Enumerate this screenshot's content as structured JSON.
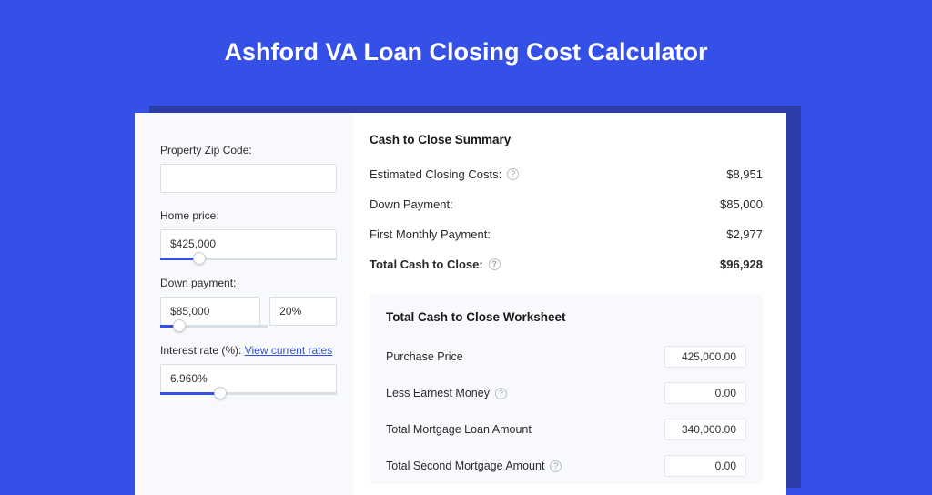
{
  "colors": {
    "page_bg": "#3550e6",
    "shadow_bg": "#2c3ca8",
    "card_bg": "#ffffff",
    "panel_bg": "#f8f9fc",
    "accent": "#3550e6",
    "border": "#d9dde4",
    "text": "#2b2b2b",
    "title_text": "#ffffff"
  },
  "title": "Ashford VA Loan Closing Cost Calculator",
  "inputs": {
    "zip": {
      "label": "Property Zip Code:",
      "value": ""
    },
    "home_price": {
      "label": "Home price:",
      "value": "$425,000",
      "slider_pct": 22
    },
    "down_payment": {
      "label": "Down payment:",
      "value": "$85,000",
      "pct_value": "20%",
      "slider_pct": 18
    },
    "interest_rate": {
      "label_prefix": "Interest rate (%): ",
      "link_text": "View current rates",
      "value": "6.960%",
      "slider_pct": 34
    }
  },
  "summary": {
    "title": "Cash to Close Summary",
    "rows": [
      {
        "label": "Estimated Closing Costs:",
        "help": true,
        "value": "$8,951",
        "bold": false
      },
      {
        "label": "Down Payment:",
        "help": false,
        "value": "$85,000",
        "bold": false
      },
      {
        "label": "First Monthly Payment:",
        "help": false,
        "value": "$2,977",
        "bold": false
      },
      {
        "label": "Total Cash to Close:",
        "help": true,
        "value": "$96,928",
        "bold": true
      }
    ]
  },
  "worksheet": {
    "title": "Total Cash to Close Worksheet",
    "rows": [
      {
        "label": "Purchase Price",
        "help": false,
        "value": "425,000.00"
      },
      {
        "label": "Less Earnest Money",
        "help": true,
        "value": "0.00"
      },
      {
        "label": "Total Mortgage Loan Amount",
        "help": false,
        "value": "340,000.00"
      },
      {
        "label": "Total Second Mortgage Amount",
        "help": true,
        "value": "0.00"
      }
    ]
  }
}
